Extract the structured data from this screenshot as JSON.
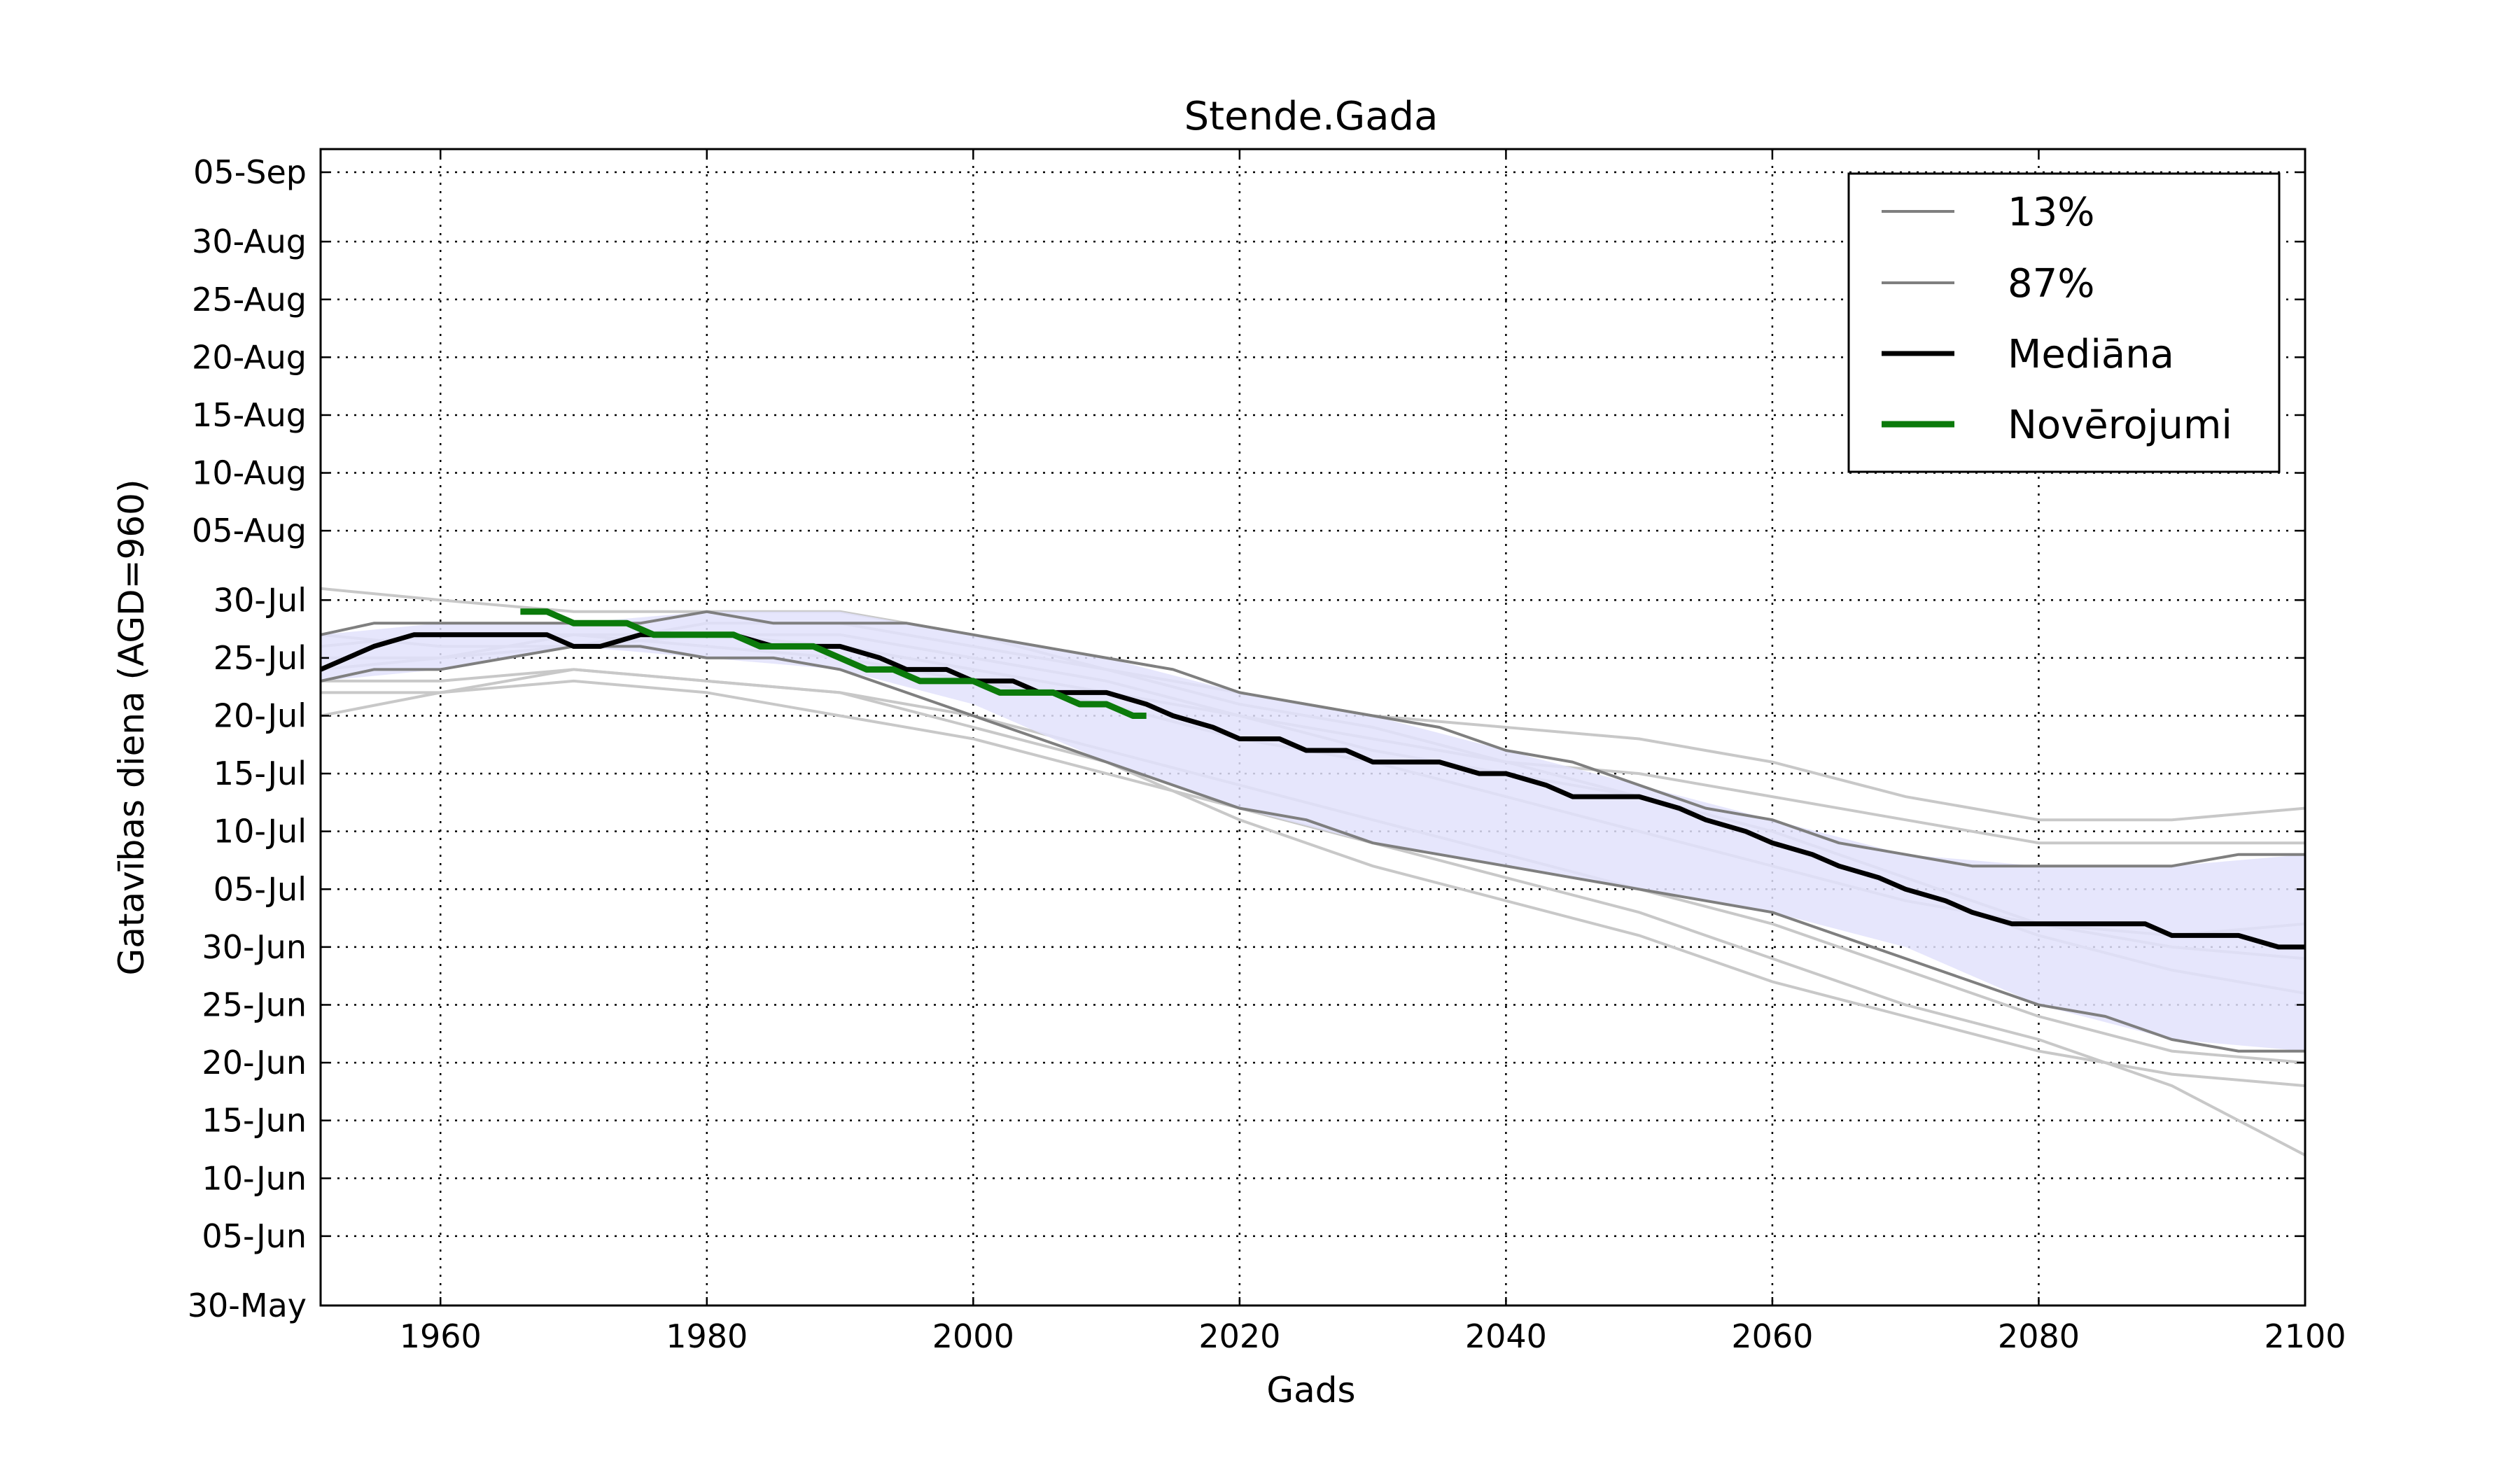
{
  "chart_data": {
    "type": "line",
    "title": "Stende.Gada",
    "xlabel": "Gads",
    "ylabel": "Gatavības diena (AGD=960)",
    "xlim": [
      1951,
      2100
    ],
    "ylim": [
      "30-May",
      "07-Sep"
    ],
    "x_ticks": [
      1960,
      1980,
      2000,
      2020,
      2040,
      2060,
      2080,
      2100
    ],
    "y_ticks": [
      "30-May",
      "05-Jun",
      "10-Jun",
      "15-Jun",
      "20-Jun",
      "25-Jun",
      "30-Jun",
      "05-Jul",
      "10-Jul",
      "15-Jul",
      "20-Jul",
      "25-Jul",
      "30-Jul",
      "05-Aug",
      "10-Aug",
      "15-Aug",
      "20-Aug",
      "25-Aug",
      "30-Aug",
      "05-Sep"
    ],
    "grid": true,
    "legend_position": "top-right",
    "colors": {
      "band_fill": "#e2e2fb",
      "quantile_line": "#7f7f7f",
      "ensemble_line": "#c8c8c8",
      "median": "#000000",
      "observations": "#0b7a0b"
    },
    "band": {
      "x": [
        1951,
        1960,
        1970,
        1980,
        1990,
        2000,
        2010,
        2020,
        2030,
        2040,
        2050,
        2060,
        2070,
        2080,
        2090,
        2100
      ],
      "lower": [
        "23-Jul",
        "24-Jul",
        "26-Jul",
        "25-Jul",
        "24-Jul",
        "21-Jul",
        "16-Jul",
        "12-Jul",
        "09-Jul",
        "07-Jul",
        "05-Jul",
        "03-Jul",
        "30-Jun",
        "25-Jun",
        "22-Jun",
        "21-Jun"
      ],
      "upper": [
        "27-Jul",
        "28-Jul",
        "28-Jul",
        "29-Jul",
        "29-Jul",
        "27-Jul",
        "25-Jul",
        "22-Jul",
        "20-Jul",
        "17-Jul",
        "14-Jul",
        "11-Jul",
        "08-Jul",
        "07-Jul",
        "07-Jul",
        "08-Jul"
      ]
    },
    "series": [
      {
        "name": "13%",
        "style": "quantile",
        "x": [
          1951,
          1955,
          1960,
          1965,
          1970,
          1975,
          1980,
          1985,
          1990,
          1995,
          2000,
          2005,
          2010,
          2015,
          2020,
          2025,
          2030,
          2035,
          2040,
          2045,
          2050,
          2055,
          2060,
          2065,
          2070,
          2075,
          2080,
          2085,
          2090,
          2095,
          2100
        ],
        "y": [
          "23-Jul",
          "24-Jul",
          "24-Jul",
          "25-Jul",
          "26-Jul",
          "26-Jul",
          "25-Jul",
          "25-Jul",
          "24-Jul",
          "22-Jul",
          "20-Jul",
          "18-Jul",
          "16-Jul",
          "14-Jul",
          "12-Jul",
          "11-Jul",
          "09-Jul",
          "08-Jul",
          "07-Jul",
          "06-Jul",
          "05-Jul",
          "04-Jul",
          "03-Jul",
          "01-Jul",
          "29-Jun",
          "27-Jun",
          "25-Jun",
          "24-Jun",
          "22-Jun",
          "21-Jun",
          "21-Jun"
        ]
      },
      {
        "name": "87%",
        "style": "quantile",
        "x": [
          1951,
          1955,
          1960,
          1965,
          1970,
          1975,
          1980,
          1985,
          1990,
          1995,
          2000,
          2005,
          2010,
          2015,
          2020,
          2025,
          2030,
          2035,
          2040,
          2045,
          2050,
          2055,
          2060,
          2065,
          2070,
          2075,
          2080,
          2085,
          2090,
          2095,
          2100
        ],
        "y": [
          "27-Jul",
          "28-Jul",
          "28-Jul",
          "28-Jul",
          "28-Jul",
          "28-Jul",
          "29-Jul",
          "28-Jul",
          "28-Jul",
          "28-Jul",
          "27-Jul",
          "26-Jul",
          "25-Jul",
          "24-Jul",
          "22-Jul",
          "21-Jul",
          "20-Jul",
          "19-Jul",
          "17-Jul",
          "16-Jul",
          "14-Jul",
          "12-Jul",
          "11-Jul",
          "09-Jul",
          "08-Jul",
          "07-Jul",
          "07-Jul",
          "07-Jul",
          "07-Jul",
          "08-Jul",
          "08-Jul"
        ]
      },
      {
        "name": "Mediāna",
        "style": "median",
        "x": [
          1951,
          1953,
          1955,
          1958,
          1960,
          1962,
          1965,
          1968,
          1970,
          1972,
          1975,
          1978,
          1980,
          1982,
          1985,
          1988,
          1990,
          1993,
          1995,
          1998,
          2000,
          2003,
          2005,
          2008,
          2010,
          2013,
          2015,
          2018,
          2020,
          2023,
          2025,
          2028,
          2030,
          2033,
          2035,
          2038,
          2040,
          2043,
          2045,
          2048,
          2050,
          2053,
          2055,
          2058,
          2060,
          2063,
          2065,
          2068,
          2070,
          2073,
          2075,
          2078,
          2080,
          2083,
          2085,
          2088,
          2090,
          2093,
          2095,
          2098,
          2100
        ],
        "y": [
          "24-Jul",
          "25-Jul",
          "26-Jul",
          "27-Jul",
          "27-Jul",
          "27-Jul",
          "27-Jul",
          "27-Jul",
          "26-Jul",
          "26-Jul",
          "27-Jul",
          "27-Jul",
          "27-Jul",
          "27-Jul",
          "26-Jul",
          "26-Jul",
          "26-Jul",
          "25-Jul",
          "24-Jul",
          "24-Jul",
          "23-Jul",
          "23-Jul",
          "22-Jul",
          "22-Jul",
          "22-Jul",
          "21-Jul",
          "20-Jul",
          "19-Jul",
          "18-Jul",
          "18-Jul",
          "17-Jul",
          "17-Jul",
          "16-Jul",
          "16-Jul",
          "16-Jul",
          "15-Jul",
          "15-Jul",
          "14-Jul",
          "13-Jul",
          "13-Jul",
          "13-Jul",
          "12-Jul",
          "11-Jul",
          "10-Jul",
          "09-Jul",
          "08-Jul",
          "07-Jul",
          "06-Jul",
          "05-Jul",
          "04-Jul",
          "03-Jul",
          "02-Jul",
          "02-Jul",
          "02-Jul",
          "02-Jul",
          "02-Jul",
          "01-Jul",
          "01-Jul",
          "01-Jul",
          "30-Jun",
          "30-Jun"
        ]
      },
      {
        "name": "Novērojumi",
        "style": "observations",
        "x": [
          1966,
          1968,
          1970,
          1972,
          1974,
          1976,
          1978,
          1980,
          1982,
          1984,
          1986,
          1988,
          1990,
          1992,
          1994,
          1996,
          1998,
          2000,
          2002,
          2004,
          2006,
          2008,
          2010,
          2012,
          2013
        ],
        "y": [
          "29-Jul",
          "29-Jul",
          "28-Jul",
          "28-Jul",
          "28-Jul",
          "27-Jul",
          "27-Jul",
          "27-Jul",
          "27-Jul",
          "26-Jul",
          "26-Jul",
          "26-Jul",
          "25-Jul",
          "24-Jul",
          "24-Jul",
          "23-Jul",
          "23-Jul",
          "23-Jul",
          "22-Jul",
          "22-Jul",
          "22-Jul",
          "21-Jul",
          "21-Jul",
          "20-Jul",
          "20-Jul"
        ]
      }
    ],
    "ensemble_members": [
      {
        "x": [
          1951,
          1960,
          1970,
          1980,
          1990,
          2000,
          2010,
          2020,
          2030,
          2040,
          2050,
          2060,
          2070,
          2080,
          2090,
          2100
        ],
        "y": [
          "31-Jul",
          "30-Jul",
          "29-Jul",
          "29-Jul",
          "29-Jul",
          "27-Jul",
          "24-Jul",
          "22-Jul",
          "20-Jul",
          "19-Jul",
          "18-Jul",
          "16-Jul",
          "13-Jul",
          "11-Jul",
          "11-Jul",
          "12-Jul"
        ]
      },
      {
        "x": [
          1951,
          1960,
          1970,
          1980,
          1990,
          2000,
          2010,
          2020,
          2030,
          2040,
          2050,
          2060,
          2070,
          2080,
          2090,
          2100
        ],
        "y": [
          "20-Jul",
          "22-Jul",
          "24-Jul",
          "23-Jul",
          "22-Jul",
          "19-Jul",
          "16-Jul",
          "11-Jul",
          "07-Jul",
          "04-Jul",
          "01-Jul",
          "27-Jun",
          "24-Jun",
          "21-Jun",
          "19-Jun",
          "18-Jun"
        ]
      },
      {
        "x": [
          1951,
          1960,
          1970,
          1980,
          1990,
          2000,
          2010,
          2020,
          2030,
          2040,
          2050,
          2060,
          2070,
          2080,
          2090,
          2100
        ],
        "y": [
          "22-Jul",
          "22-Jul",
          "23-Jul",
          "22-Jul",
          "20-Jul",
          "18-Jul",
          "15-Jul",
          "12-Jul",
          "09-Jul",
          "06-Jul",
          "03-Jul",
          "29-Jun",
          "25-Jun",
          "22-Jun",
          "18-Jun",
          "12-Jun"
        ]
      },
      {
        "x": [
          1951,
          1960,
          1970,
          1980,
          1990,
          2000,
          2010,
          2020,
          2030,
          2040,
          2050,
          2060,
          2070,
          2080,
          2090,
          2100
        ],
        "y": [
          "25-Jul",
          "25-Jul",
          "26-Jul",
          "27-Jul",
          "27-Jul",
          "25-Jul",
          "23-Jul",
          "20-Jul",
          "17-Jul",
          "15-Jul",
          "13-Jul",
          "10-Jul",
          "06-Jul",
          "02-Jul",
          "30-Jun",
          "29-Jun"
        ]
      },
      {
        "x": [
          1951,
          1960,
          1970,
          1980,
          1990,
          2000,
          2010,
          2020,
          2030,
          2040,
          2050,
          2060,
          2070,
          2080,
          2090,
          2100
        ],
        "y": [
          "26-Jul",
          "27-Jul",
          "27-Jul",
          "26-Jul",
          "25-Jul",
          "23-Jul",
          "21-Jul",
          "18-Jul",
          "16-Jul",
          "13-Jul",
          "10-Jul",
          "07-Jul",
          "04-Jul",
          "02-Jul",
          "01-Jul",
          "02-Jul"
        ]
      },
      {
        "x": [
          1951,
          1960,
          1970,
          1980,
          1990,
          2000,
          2010,
          2020,
          2030,
          2040,
          2050,
          2060,
          2070,
          2080,
          2090,
          2100
        ],
        "y": [
          "27-Jul",
          "26-Jul",
          "26-Jul",
          "28-Jul",
          "28-Jul",
          "26-Jul",
          "24-Jul",
          "21-Jul",
          "19-Jul",
          "16-Jul",
          "13-Jul",
          "09-Jul",
          "05-Jul",
          "01-Jul",
          "28-Jun",
          "26-Jun"
        ]
      },
      {
        "x": [
          1951,
          1960,
          1970,
          1980,
          1990,
          2000,
          2010,
          2020,
          2030,
          2040,
          2050,
          2060,
          2070,
          2080,
          2090,
          2100
        ],
        "y": [
          "24-Jul",
          "25-Jul",
          "27-Jul",
          "27-Jul",
          "26-Jul",
          "24-Jul",
          "22-Jul",
          "20-Jul",
          "18-Jul",
          "16-Jul",
          "15-Jul",
          "13-Jul",
          "11-Jul",
          "09-Jul",
          "09-Jul",
          "09-Jul"
        ]
      },
      {
        "x": [
          1951,
          1960,
          1970,
          1980,
          1990,
          2000,
          2010,
          2020,
          2030,
          2040,
          2050,
          2060,
          2070,
          2080,
          2090,
          2100
        ],
        "y": [
          "23-Jul",
          "23-Jul",
          "24-Jul",
          "23-Jul",
          "22-Jul",
          "20-Jul",
          "17-Jul",
          "14-Jul",
          "11-Jul",
          "08-Jul",
          "05-Jul",
          "02-Jul",
          "28-Jun",
          "24-Jun",
          "21-Jun",
          "20-Jun"
        ]
      }
    ]
  }
}
